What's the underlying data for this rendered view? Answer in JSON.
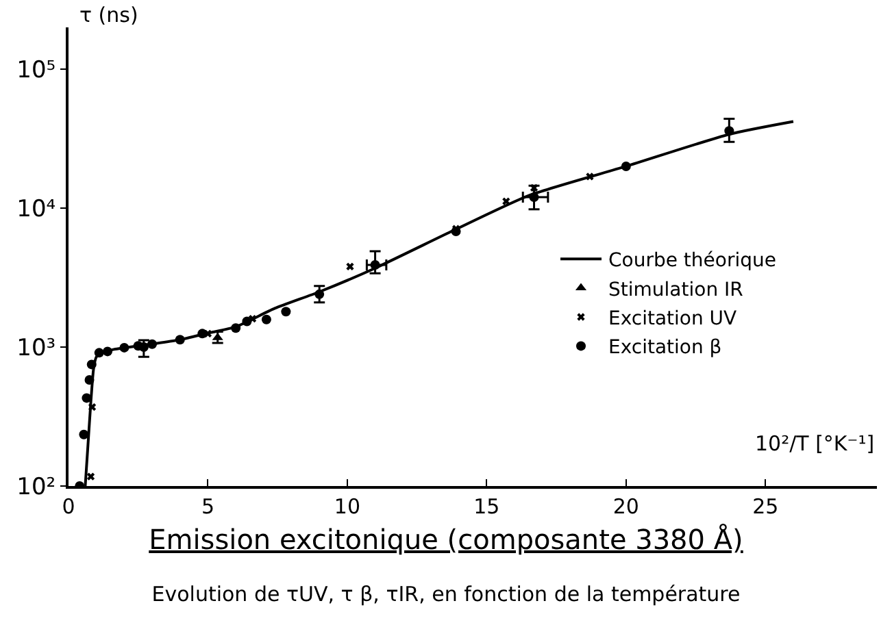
{
  "chart_data": {
    "type": "scatter",
    "title": "Emission excitonique (composante 3380 Å)",
    "subtitle": "Evolution de τUV, τ β, τIR, en fonction de la température",
    "xlabel": "10²/T [°K⁻¹]",
    "ylabel": "τ (ns)",
    "log": "y",
    "grid": false,
    "legend": "right",
    "xlim": [
      0,
      29
    ],
    "xticks": [
      0,
      5,
      10,
      15,
      20,
      25
    ],
    "ylim": [
      100,
      200000
    ],
    "yticks": [
      {
        "value": 100,
        "label": "10²"
      },
      {
        "value": 1000,
        "label": "10³"
      },
      {
        "value": 10000,
        "label": "10⁴"
      },
      {
        "value": 100000,
        "label": "10⁵"
      }
    ],
    "series": [
      {
        "name": "Courbe théorique",
        "type": "line",
        "marker": "none",
        "line_style": "solid",
        "color": "#000000",
        "x": [
          0.6,
          0.7,
          0.8,
          0.9,
          1.0,
          1.24,
          1.6,
          2.5,
          4,
          5,
          6,
          7.4,
          9,
          11,
          13.8,
          16.5,
          20,
          23.7,
          26
        ],
        "values": [
          100,
          200,
          400,
          700,
          850,
          910,
          960,
          1020,
          1130,
          1260,
          1400,
          1900,
          2500,
          3700,
          6900,
          12300,
          20000,
          34000,
          42000
        ]
      },
      {
        "name": "Stimulation IR",
        "marker": "triangle",
        "color": "#000000",
        "x": [
          5.35
        ],
        "values": [
          1170
        ],
        "errors": [
          [
            1070,
            1290
          ]
        ]
      },
      {
        "name": "Excitation UV",
        "marker": "cross",
        "color": "#000000",
        "x": [
          0.8,
          0.85,
          5.0,
          6.6,
          10.1,
          13.9,
          15.7,
          16.7,
          18.7
        ],
        "values": [
          117,
          370,
          1250,
          1600,
          3800,
          7100,
          11200,
          14000,
          16900
        ]
      },
      {
        "name": "Excitation β",
        "marker": "circle",
        "color": "#000000",
        "x": [
          0.4,
          0.55,
          0.65,
          0.75,
          0.83,
          1.1,
          1.4,
          2.0,
          2.5,
          2.7,
          3.0,
          4.0,
          4.8,
          6.0,
          6.4,
          7.1,
          7.8,
          9.0,
          11.0,
          13.9,
          16.7,
          20.0,
          23.7
        ],
        "values": [
          100,
          235,
          430,
          580,
          750,
          910,
          930,
          990,
          1020,
          1000,
          1050,
          1130,
          1250,
          1370,
          1530,
          1580,
          1800,
          2400,
          3900,
          6800,
          12000,
          20000,
          36000
        ],
        "errors": [
          null,
          null,
          null,
          null,
          null,
          null,
          null,
          null,
          null,
          [
            850,
            1120
          ],
          null,
          null,
          null,
          null,
          null,
          null,
          null,
          [
            2100,
            2750
          ],
          [
            3400,
            4900
          ],
          null,
          [
            9800,
            14500
          ],
          null,
          [
            30000,
            44000
          ]
        ],
        "xerrors": [
          null,
          null,
          null,
          null,
          null,
          null,
          null,
          null,
          null,
          null,
          null,
          null,
          null,
          null,
          null,
          null,
          null,
          null,
          [
            10.7,
            11.4
          ],
          null,
          [
            16.3,
            17.2
          ],
          null,
          null
        ]
      }
    ]
  }
}
